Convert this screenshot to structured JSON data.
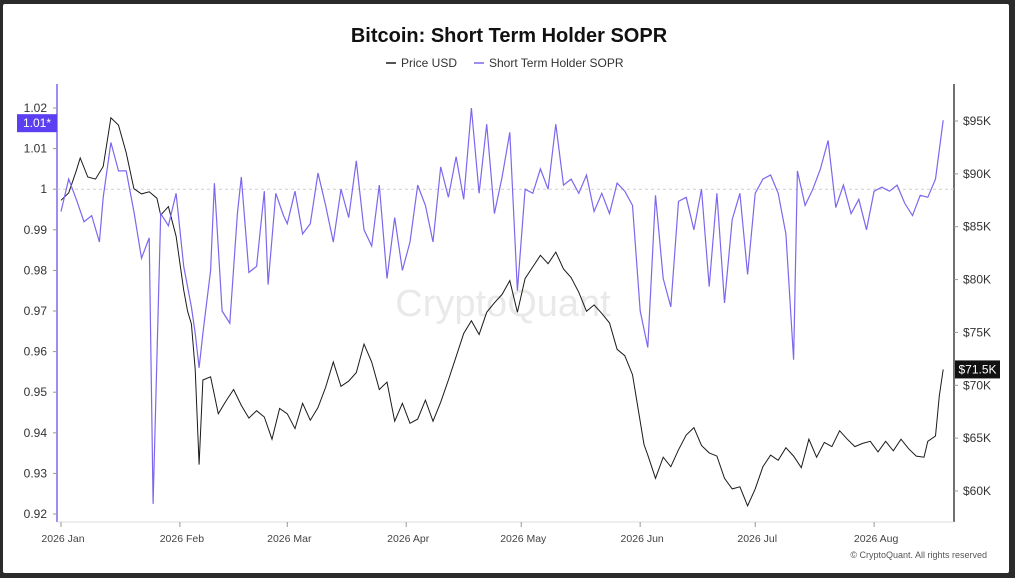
{
  "chart_data": {
    "type": "line",
    "title": "Bitcoin: Short Term Holder SOPR",
    "watermark": "CryptoQuant",
    "credit": "© CryptoQuant. All rights reserved",
    "legend_placement": "top-center",
    "grid": false,
    "x_ticks": [
      "2026 Jan",
      "2026 Feb",
      "2026 Mar",
      "2026 Apr",
      "2026 May",
      "2026 Jun",
      "2026 Jul",
      "2026 Aug"
    ],
    "x_range": [
      "2026-01-01",
      "2026-08-20"
    ],
    "left_axis": {
      "ticks": [
        "0.92",
        "0.93",
        "0.94",
        "0.95",
        "0.96",
        "0.97",
        "0.98",
        "0.99",
        "1",
        "1.01",
        "1.02"
      ],
      "ylim": [
        0.92,
        1.02
      ],
      "reference_line": 1,
      "current_value_label": "1.01*",
      "color": "#7b68ee"
    },
    "right_axis": {
      "ticks": [
        "$60K",
        "$65K",
        "$70K",
        "$75K",
        "$80K",
        "$85K",
        "$90K",
        "$95K"
      ],
      "ylim": [
        60000,
        95000
      ],
      "current_value_label": "$71.5K"
    },
    "series": [
      {
        "name": "Price USD",
        "axis": "right",
        "color": "#1a1a1a",
        "points": [
          [
            "2026-01-01",
            87500
          ],
          [
            "2026-01-03",
            88200
          ],
          [
            "2026-01-05",
            90300
          ],
          [
            "2026-01-06",
            91500
          ],
          [
            "2026-01-08",
            89700
          ],
          [
            "2026-01-10",
            89500
          ],
          [
            "2026-01-12",
            90700
          ],
          [
            "2026-01-14",
            95300
          ],
          [
            "2026-01-16",
            94600
          ],
          [
            "2026-01-18",
            92000
          ],
          [
            "2026-01-20",
            88600
          ],
          [
            "2026-01-22",
            88100
          ],
          [
            "2026-01-24",
            88300
          ],
          [
            "2026-01-26",
            87700
          ],
          [
            "2026-01-27",
            86100
          ],
          [
            "2026-01-29",
            86900
          ],
          [
            "2026-01-31",
            84100
          ],
          [
            "2026-02-02",
            79000
          ],
          [
            "2026-02-03",
            77000
          ],
          [
            "2026-02-04",
            75800
          ],
          [
            "2026-02-05",
            71500
          ],
          [
            "2026-02-06",
            62500
          ],
          [
            "2026-02-07",
            70500
          ],
          [
            "2026-02-09",
            70800
          ],
          [
            "2026-02-11",
            67300
          ],
          [
            "2026-02-13",
            68500
          ],
          [
            "2026-02-15",
            69600
          ],
          [
            "2026-02-17",
            68100
          ],
          [
            "2026-02-19",
            66900
          ],
          [
            "2026-02-21",
            67600
          ],
          [
            "2026-02-23",
            67000
          ],
          [
            "2026-02-25",
            64900
          ],
          [
            "2026-02-27",
            67800
          ],
          [
            "2026-03-01",
            67300
          ],
          [
            "2026-03-03",
            65900
          ],
          [
            "2026-03-05",
            68300
          ],
          [
            "2026-03-07",
            66700
          ],
          [
            "2026-03-09",
            67900
          ],
          [
            "2026-03-11",
            69800
          ],
          [
            "2026-03-13",
            72200
          ],
          [
            "2026-03-15",
            69900
          ],
          [
            "2026-03-17",
            70400
          ],
          [
            "2026-03-19",
            71200
          ],
          [
            "2026-03-21",
            73900
          ],
          [
            "2026-03-23",
            72200
          ],
          [
            "2026-03-25",
            69600
          ],
          [
            "2026-03-27",
            70300
          ],
          [
            "2026-03-29",
            66600
          ],
          [
            "2026-03-31",
            68300
          ],
          [
            "2026-04-02",
            66400
          ],
          [
            "2026-04-04",
            66800
          ],
          [
            "2026-04-06",
            68600
          ],
          [
            "2026-04-08",
            66600
          ],
          [
            "2026-04-10",
            68400
          ],
          [
            "2026-04-12",
            70500
          ],
          [
            "2026-04-14",
            72700
          ],
          [
            "2026-04-16",
            74900
          ],
          [
            "2026-04-18",
            76100
          ],
          [
            "2026-04-20",
            74800
          ],
          [
            "2026-04-22",
            76900
          ],
          [
            "2026-04-24",
            77800
          ],
          [
            "2026-04-26",
            78600
          ],
          [
            "2026-04-28",
            79900
          ],
          [
            "2026-04-30",
            76900
          ],
          [
            "2026-05-02",
            80100
          ],
          [
            "2026-05-04",
            81200
          ],
          [
            "2026-05-06",
            82300
          ],
          [
            "2026-05-08",
            81500
          ],
          [
            "2026-05-10",
            82600
          ],
          [
            "2026-05-12",
            81000
          ],
          [
            "2026-05-14",
            80200
          ],
          [
            "2026-05-16",
            78800
          ],
          [
            "2026-05-18",
            77000
          ],
          [
            "2026-05-20",
            77600
          ],
          [
            "2026-05-22",
            76800
          ],
          [
            "2026-05-24",
            75900
          ],
          [
            "2026-05-26",
            73400
          ],
          [
            "2026-05-28",
            72800
          ],
          [
            "2026-05-30",
            71000
          ],
          [
            "2026-06-02",
            64400
          ],
          [
            "2026-06-03",
            63400
          ],
          [
            "2026-06-05",
            61200
          ],
          [
            "2026-06-07",
            63200
          ],
          [
            "2026-06-09",
            62300
          ],
          [
            "2026-06-11",
            63900
          ],
          [
            "2026-06-13",
            65300
          ],
          [
            "2026-06-15",
            66000
          ],
          [
            "2026-06-17",
            64300
          ],
          [
            "2026-06-19",
            63600
          ],
          [
            "2026-06-21",
            63300
          ],
          [
            "2026-06-23",
            61200
          ],
          [
            "2026-06-25",
            60200
          ],
          [
            "2026-06-27",
            60400
          ],
          [
            "2026-06-29",
            58600
          ],
          [
            "2026-07-01",
            60200
          ],
          [
            "2026-07-03",
            62300
          ],
          [
            "2026-07-05",
            63400
          ],
          [
            "2026-07-07",
            62900
          ],
          [
            "2026-07-09",
            64100
          ],
          [
            "2026-07-11",
            63300
          ],
          [
            "2026-07-13",
            62200
          ],
          [
            "2026-07-15",
            64900
          ],
          [
            "2026-07-17",
            63200
          ],
          [
            "2026-07-19",
            64600
          ],
          [
            "2026-07-21",
            64200
          ],
          [
            "2026-07-23",
            65700
          ],
          [
            "2026-07-25",
            64900
          ],
          [
            "2026-07-27",
            64200
          ],
          [
            "2026-07-29",
            64500
          ],
          [
            "2026-07-31",
            64700
          ],
          [
            "2026-08-02",
            63700
          ],
          [
            "2026-08-04",
            64700
          ],
          [
            "2026-08-06",
            63800
          ],
          [
            "2026-08-08",
            64900
          ],
          [
            "2026-08-10",
            64000
          ],
          [
            "2026-08-12",
            63300
          ],
          [
            "2026-08-14",
            63200
          ],
          [
            "2026-08-15",
            64700
          ],
          [
            "2026-08-17",
            65200
          ],
          [
            "2026-08-18",
            69000
          ],
          [
            "2026-08-19",
            71500
          ]
        ]
      },
      {
        "name": "Short Term Holder SOPR",
        "axis": "left",
        "color": "#7b68ee",
        "points": [
          [
            "2026-01-01",
            0.9945
          ],
          [
            "2026-01-03",
            1.0025
          ],
          [
            "2026-01-05",
            0.9975
          ],
          [
            "2026-01-07",
            0.992
          ],
          [
            "2026-01-09",
            0.9935
          ],
          [
            "2026-01-11",
            0.987
          ],
          [
            "2026-01-12",
            0.998
          ],
          [
            "2026-01-14",
            1.0115
          ],
          [
            "2026-01-16",
            1.0045
          ],
          [
            "2026-01-18",
            1.0045
          ],
          [
            "2026-01-20",
            0.9945
          ],
          [
            "2026-01-22",
            0.983
          ],
          [
            "2026-01-24",
            0.988
          ],
          [
            "2026-01-25",
            0.9225
          ],
          [
            "2026-01-27",
            0.994
          ],
          [
            "2026-01-29",
            0.991
          ],
          [
            "2026-01-31",
            0.999
          ],
          [
            "2026-02-02",
            0.981
          ],
          [
            "2026-02-04",
            0.971
          ],
          [
            "2026-02-05",
            0.9645
          ],
          [
            "2026-02-06",
            0.956
          ],
          [
            "2026-02-07",
            0.9645
          ],
          [
            "2026-02-09",
            0.98
          ],
          [
            "2026-02-10",
            1.0015
          ],
          [
            "2026-02-12",
            0.97
          ],
          [
            "2026-02-14",
            0.967
          ],
          [
            "2026-02-16",
            0.994
          ],
          [
            "2026-02-17",
            1.003
          ],
          [
            "2026-02-19",
            0.9795
          ],
          [
            "2026-02-21",
            0.981
          ],
          [
            "2026-02-23",
            0.9995
          ],
          [
            "2026-02-24",
            0.9765
          ],
          [
            "2026-02-26",
            0.999
          ],
          [
            "2026-02-28",
            0.9935
          ],
          [
            "2026-03-01",
            0.9915
          ],
          [
            "2026-03-03",
            0.9995
          ],
          [
            "2026-03-05",
            0.989
          ],
          [
            "2026-03-07",
            0.9915
          ],
          [
            "2026-03-09",
            1.004
          ],
          [
            "2026-03-11",
            0.996
          ],
          [
            "2026-03-13",
            0.987
          ],
          [
            "2026-03-15",
            1.0
          ],
          [
            "2026-03-17",
            0.993
          ],
          [
            "2026-03-19",
            1.007
          ],
          [
            "2026-03-21",
            0.99
          ],
          [
            "2026-03-23",
            0.986
          ],
          [
            "2026-03-25",
            1.001
          ],
          [
            "2026-03-27",
            0.978
          ],
          [
            "2026-03-29",
            0.993
          ],
          [
            "2026-03-31",
            0.98
          ],
          [
            "2026-04-02",
            0.987
          ],
          [
            "2026-04-04",
            1.001
          ],
          [
            "2026-04-06",
            0.996
          ],
          [
            "2026-04-08",
            0.987
          ],
          [
            "2026-04-10",
            1.0055
          ],
          [
            "2026-04-12",
            0.998
          ],
          [
            "2026-04-14",
            1.008
          ],
          [
            "2026-04-16",
            0.9975
          ],
          [
            "2026-04-18",
            1.02
          ],
          [
            "2026-04-20",
            0.999
          ],
          [
            "2026-04-22",
            1.016
          ],
          [
            "2026-04-24",
            0.994
          ],
          [
            "2026-04-26",
            1.003
          ],
          [
            "2026-04-28",
            1.014
          ],
          [
            "2026-04-30",
            0.975
          ],
          [
            "2026-05-02",
            1.0
          ],
          [
            "2026-05-04",
            0.999
          ],
          [
            "2026-05-06",
            1.005
          ],
          [
            "2026-05-08",
            1.0
          ],
          [
            "2026-05-10",
            1.016
          ],
          [
            "2026-05-12",
            1.001
          ],
          [
            "2026-05-14",
            1.0025
          ],
          [
            "2026-05-16",
            0.999
          ],
          [
            "2026-05-18",
            1.0035
          ],
          [
            "2026-05-20",
            0.9945
          ],
          [
            "2026-05-22",
            0.999
          ],
          [
            "2026-05-24",
            0.994
          ],
          [
            "2026-05-26",
            1.0015
          ],
          [
            "2026-05-28",
            0.9995
          ],
          [
            "2026-05-30",
            0.996
          ],
          [
            "2026-06-01",
            0.97
          ],
          [
            "2026-06-03",
            0.961
          ],
          [
            "2026-06-05",
            0.9985
          ],
          [
            "2026-06-07",
            0.978
          ],
          [
            "2026-06-09",
            0.971
          ],
          [
            "2026-06-11",
            0.997
          ],
          [
            "2026-06-13",
            0.998
          ],
          [
            "2026-06-15",
            0.99
          ],
          [
            "2026-06-17",
            1.0
          ],
          [
            "2026-06-19",
            0.976
          ],
          [
            "2026-06-21",
            0.999
          ],
          [
            "2026-06-23",
            0.972
          ],
          [
            "2026-06-25",
            0.9925
          ],
          [
            "2026-06-27",
            0.999
          ],
          [
            "2026-06-29",
            0.979
          ],
          [
            "2026-07-01",
            0.999
          ],
          [
            "2026-07-03",
            1.0025
          ],
          [
            "2026-07-05",
            1.0035
          ],
          [
            "2026-07-07",
            0.999
          ],
          [
            "2026-07-09",
            0.989
          ],
          [
            "2026-07-11",
            0.958
          ],
          [
            "2026-07-12",
            1.0045
          ],
          [
            "2026-07-14",
            0.996
          ],
          [
            "2026-07-16",
            1.0
          ],
          [
            "2026-07-18",
            1.005
          ],
          [
            "2026-07-20",
            1.012
          ],
          [
            "2026-07-22",
            0.9955
          ],
          [
            "2026-07-24",
            1.001
          ],
          [
            "2026-07-26",
            0.994
          ],
          [
            "2026-07-28",
            0.9975
          ],
          [
            "2026-07-30",
            0.99
          ],
          [
            "2026-08-01",
            0.9995
          ],
          [
            "2026-08-03",
            1.0005
          ],
          [
            "2026-08-05",
            0.9995
          ],
          [
            "2026-08-07",
            1.001
          ],
          [
            "2026-08-09",
            0.9965
          ],
          [
            "2026-08-11",
            0.9935
          ],
          [
            "2026-08-13",
            0.9985
          ],
          [
            "2026-08-15",
            0.998
          ],
          [
            "2026-08-17",
            1.0025
          ],
          [
            "2026-08-19",
            1.017
          ]
        ]
      }
    ]
  }
}
